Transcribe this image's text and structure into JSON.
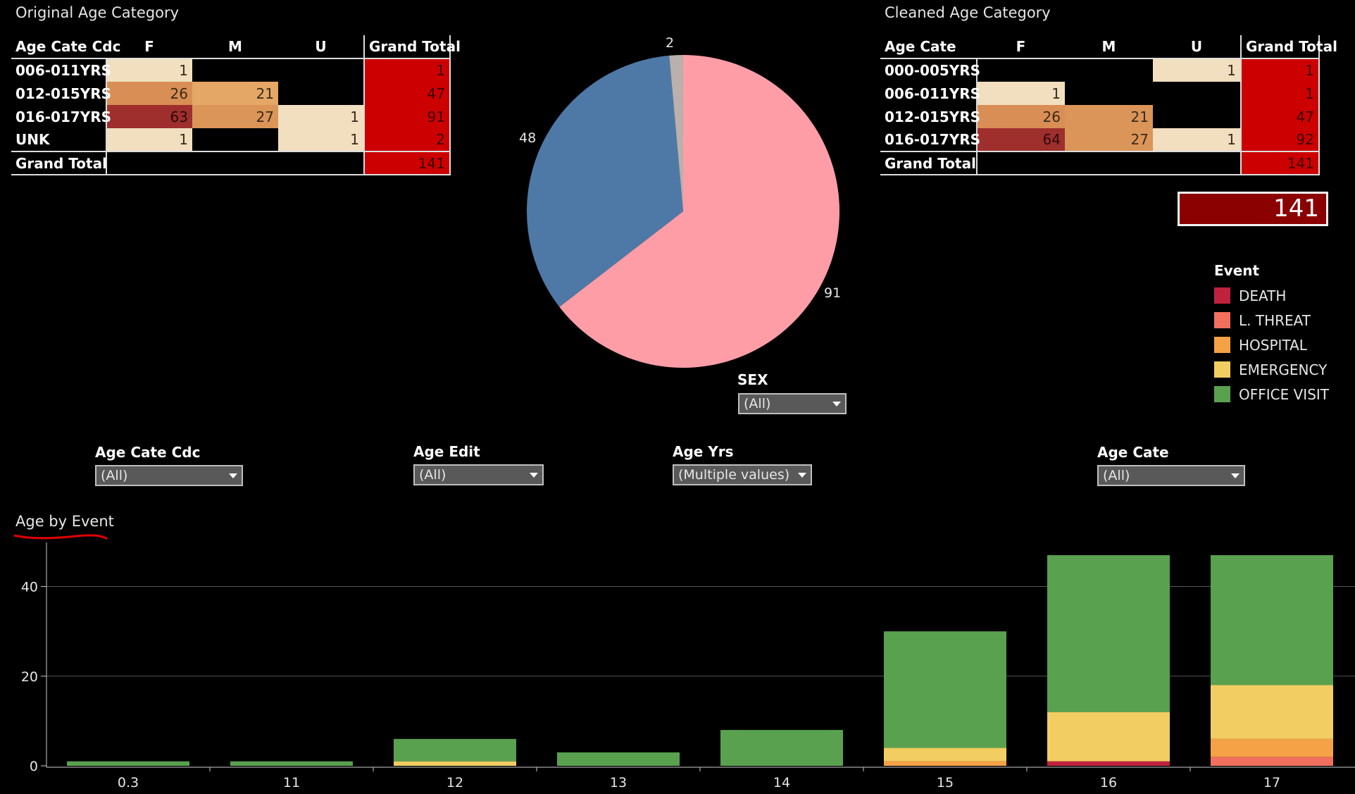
{
  "original_table": {
    "title": "Original Age Category",
    "headers": [
      "Age Cate Cdc",
      "F",
      "M",
      "U",
      "Grand Total"
    ],
    "rows": [
      {
        "label": "006-011YRS",
        "f": "1",
        "m": "",
        "u": "",
        "total": "1"
      },
      {
        "label": "012-015YRS",
        "f": "26",
        "m": "21",
        "u": "",
        "total": "47"
      },
      {
        "label": "016-017YRS",
        "f": "63",
        "m": "27",
        "u": "1",
        "total": "91"
      },
      {
        "label": "UNK",
        "f": "1",
        "m": "",
        "u": "1",
        "total": "2"
      }
    ],
    "grand_total_label": "Grand Total",
    "grand_total": "141"
  },
  "cleaned_table": {
    "title": "Cleaned Age Category",
    "headers": [
      "Age Cate",
      "F",
      "M",
      "U",
      "Grand Total"
    ],
    "rows": [
      {
        "label": "000-005YRS",
        "f": "",
        "m": "",
        "u": "1",
        "total": "1"
      },
      {
        "label": "006-011YRS",
        "f": "1",
        "m": "",
        "u": "",
        "total": "1"
      },
      {
        "label": "012-015YRS",
        "f": "26",
        "m": "21",
        "u": "",
        "total": "47"
      },
      {
        "label": "016-017YRS",
        "f": "64",
        "m": "27",
        "u": "1",
        "total": "92"
      }
    ],
    "grand_total_label": "Grand Total",
    "grand_total": "141"
  },
  "kpi": {
    "value": "141"
  },
  "pie": {
    "slices": [
      {
        "value": 91,
        "color": "#ff9da7"
      },
      {
        "value": 48,
        "color": "#4e79a7"
      },
      {
        "value": 2,
        "color": "#bab0ac"
      }
    ],
    "labels": {
      "a": "91",
      "b": "48",
      "c": "2"
    }
  },
  "legend": {
    "title": "Event",
    "items": [
      {
        "label": "DEATH",
        "color": "#c0213f"
      },
      {
        "label": "L. THREAT",
        "color": "#f1705d"
      },
      {
        "label": "HOSPITAL",
        "color": "#f5a146"
      },
      {
        "label": "EMERGENCY",
        "color": "#f2cd62"
      },
      {
        "label": "OFFICE VISIT",
        "color": "#59a14f"
      }
    ]
  },
  "filters": {
    "sex": {
      "label": "SEX",
      "value": "(All)"
    },
    "age_cate_cdc": {
      "label": "Age Cate Cdc",
      "value": "(All)"
    },
    "age_edit": {
      "label": "Age Edit",
      "value": "(All)"
    },
    "age_yrs": {
      "label": "Age Yrs",
      "value": "(Multiple values)"
    },
    "age_cate": {
      "label": "Age Cate",
      "value": "(All)"
    }
  },
  "chart_data": {
    "type": "bar",
    "title": "Age by Event",
    "categories": [
      "0.3",
      "11",
      "12",
      "13",
      "14",
      "15",
      "16",
      "17"
    ],
    "ylim": [
      0,
      47
    ],
    "yticks": [
      "0",
      "20",
      "40"
    ],
    "series": [
      {
        "name": "DEATH",
        "color": "#c0213f",
        "values": [
          0,
          0,
          0,
          0,
          0,
          0,
          1,
          0
        ]
      },
      {
        "name": "L. THREAT",
        "color": "#f1705d",
        "values": [
          0,
          0,
          0,
          0,
          0,
          0,
          0,
          2
        ]
      },
      {
        "name": "HOSPITAL",
        "color": "#f5a146",
        "values": [
          0,
          0,
          0,
          0,
          0,
          1,
          0,
          4
        ]
      },
      {
        "name": "EMERGENCY",
        "color": "#f2cd62",
        "values": [
          0,
          0,
          1,
          0,
          0,
          3,
          11,
          12
        ]
      },
      {
        "name": "OFFICE VISIT",
        "color": "#59a14f",
        "values": [
          1,
          1,
          5,
          3,
          8,
          26,
          35,
          29
        ]
      }
    ]
  }
}
